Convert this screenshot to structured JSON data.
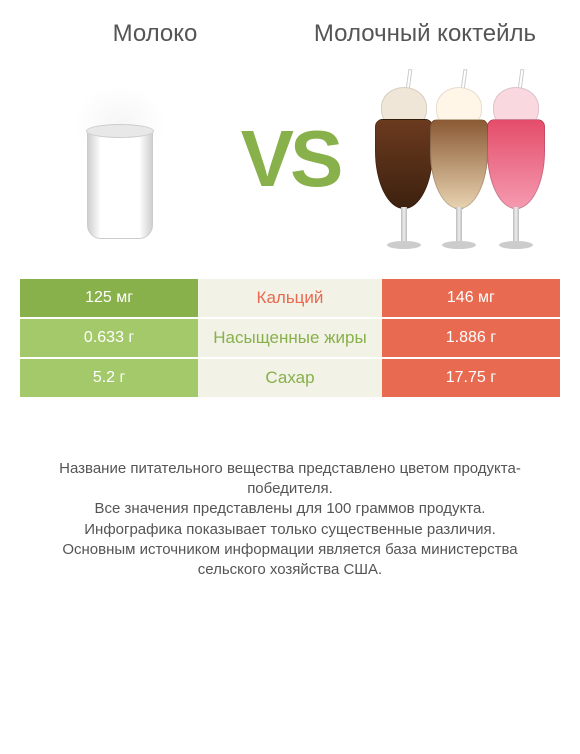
{
  "products": {
    "left": {
      "title": "Молоко"
    },
    "right": {
      "title": "Молочный коктейль"
    }
  },
  "vs_label": "VS",
  "colors": {
    "left_win": "#88b04b",
    "right_win": "#e86a50",
    "left_win_alt": "#a3c96a",
    "nutrient_bg": "#f2f2e6",
    "nutrient_text_win": "#88b04b",
    "nutrient_text_lose": "#e86a50",
    "vs": "#88b04b",
    "title": "#555555",
    "footer": "#555555",
    "background": "#ffffff"
  },
  "nutrition": {
    "rows": [
      {
        "nutrient": "Кальций",
        "left_value": "125 мг",
        "right_value": "146 мг",
        "left_bg": "#88b04b",
        "right_bg": "#e86a50",
        "nutrient_color": "#e86a50"
      },
      {
        "nutrient": "Насыщенные жиры",
        "left_value": "0.633 г",
        "right_value": "1.886 г",
        "left_bg": "#a3c96a",
        "right_bg": "#e86a50",
        "nutrient_color": "#88b04b"
      },
      {
        "nutrient": "Сахар",
        "left_value": "5.2 г",
        "right_value": "17.75 г",
        "left_bg": "#a3c96a",
        "right_bg": "#e86a50",
        "nutrient_color": "#88b04b"
      }
    ]
  },
  "footer": {
    "line1": "Название питательного вещества представлено цветом продукта-победителя.",
    "line2": "Все значения представлены для 100 граммов продукта.",
    "line3": "Инфографика показывает только существенные различия.",
    "line4": "Основным источником информации является база министерства сельского хозяйства США."
  },
  "typography": {
    "title_fontsize": 24,
    "vs_fontsize": 80,
    "table_value_fontsize": 16,
    "nutrient_fontsize": 17,
    "footer_fontsize": 15
  }
}
